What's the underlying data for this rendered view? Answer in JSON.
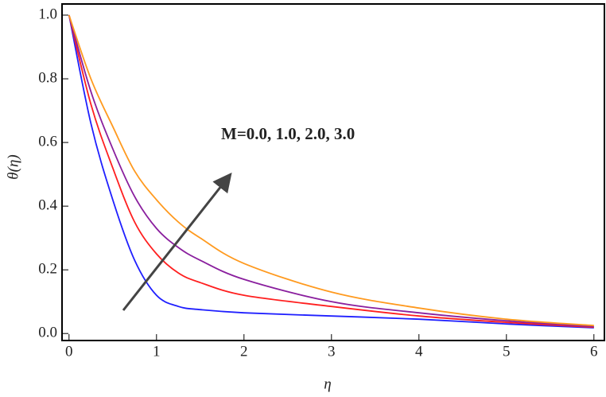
{
  "chart_data": {
    "type": "line",
    "xlabel": "η",
    "ylabel": "θ(η)",
    "annotation": "M=0.0, 1.0, 2.0, 3.0",
    "x": [
      0,
      0.25,
      0.5,
      0.75,
      1,
      1.25,
      1.5,
      2,
      3,
      4,
      5,
      6
    ],
    "series": [
      {
        "color": "#1f1fff",
        "values": [
          1,
          0.66,
          0.42,
          0.23,
          0.12,
          0.085,
          0.075,
          0.065,
          0.055,
          0.045,
          0.03,
          0.018
        ]
      },
      {
        "color": "#ff1f1f",
        "values": [
          1,
          0.72,
          0.52,
          0.35,
          0.25,
          0.19,
          0.16,
          0.12,
          0.085,
          0.055,
          0.035,
          0.02
        ]
      },
      {
        "color": "#8a1f9e",
        "values": [
          1,
          0.76,
          0.58,
          0.43,
          0.33,
          0.27,
          0.23,
          0.17,
          0.1,
          0.065,
          0.04,
          0.022
        ]
      },
      {
        "color": "#ff9a1f",
        "values": [
          1,
          0.8,
          0.65,
          0.51,
          0.42,
          0.35,
          0.3,
          0.22,
          0.13,
          0.08,
          0.045,
          0.025
        ]
      }
    ],
    "xlim": [
      -0.08,
      6.12
    ],
    "xticks": [
      0,
      1,
      2,
      3,
      4,
      5,
      6
    ],
    "ylim": [
      -0.022,
      1.035
    ],
    "yticks": [
      {
        "value": 0,
        "label": "0.0"
      },
      0.2,
      0.4,
      0.6,
      0.8,
      {
        "value": 1,
        "label": "1.0"
      }
    ]
  }
}
